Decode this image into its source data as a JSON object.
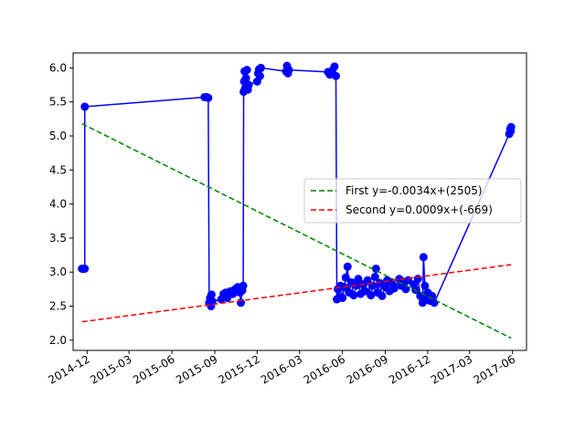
{
  "chart_data": {
    "type": "line",
    "title": "",
    "xlabel": "",
    "ylabel": "",
    "x_axis": {
      "type": "date",
      "range": [
        "2014-11-01",
        "2017-07-01"
      ],
      "ticks": [
        "2014-12",
        "2015-03",
        "2015-06",
        "2015-09",
        "2015-12",
        "2016-03",
        "2016-06",
        "2016-09",
        "2016-12",
        "2017-03",
        "2017-06"
      ]
    },
    "y_axis": {
      "range": [
        1.85,
        6.22
      ],
      "ticks": [
        2.0,
        2.5,
        3.0,
        3.5,
        4.0,
        4.5,
        5.0,
        5.5,
        6.0
      ],
      "tick_labels": [
        "2.0",
        "2.5",
        "3.0",
        "3.5",
        "4.0",
        "4.5",
        "5.0",
        "5.5",
        "6.0"
      ]
    },
    "grid": false,
    "legend_placement": "center-right",
    "series": [
      {
        "kind": "data",
        "color": "#0000ff",
        "marker": "circle",
        "points": [
          [
            "2014-11-20",
            3.05
          ],
          [
            "2014-11-22",
            3.05
          ],
          [
            "2014-11-24",
            3.05
          ],
          [
            "2014-11-26",
            3.05
          ],
          [
            "2014-11-26",
            5.43
          ],
          [
            "2015-08-10",
            5.57
          ],
          [
            "2015-08-15",
            5.57
          ],
          [
            "2015-08-18",
            5.56
          ],
          [
            "2015-08-20",
            2.55
          ],
          [
            "2015-08-22",
            2.62
          ],
          [
            "2015-08-24",
            2.5
          ],
          [
            "2015-08-25",
            2.67
          ],
          [
            "2015-08-27",
            2.57
          ],
          [
            "2015-09-15",
            2.6
          ],
          [
            "2015-09-20",
            2.68
          ],
          [
            "2015-09-25",
            2.7
          ],
          [
            "2015-09-28",
            2.62
          ],
          [
            "2015-10-05",
            2.72
          ],
          [
            "2015-10-10",
            2.68
          ],
          [
            "2015-10-15",
            2.75
          ],
          [
            "2015-10-20",
            2.78
          ],
          [
            "2015-10-25",
            2.7
          ],
          [
            "2015-10-27",
            2.55
          ],
          [
            "2015-10-30",
            2.73
          ],
          [
            "2015-11-01",
            2.8
          ],
          [
            "2015-11-02",
            5.65
          ],
          [
            "2015-11-03",
            5.8
          ],
          [
            "2015-11-04",
            5.95
          ],
          [
            "2015-11-05",
            5.7
          ],
          [
            "2015-11-07",
            5.85
          ],
          [
            "2015-11-09",
            5.97
          ],
          [
            "2015-11-11",
            5.68
          ],
          [
            "2015-11-13",
            5.75
          ],
          [
            "2015-12-01",
            5.8
          ],
          [
            "2015-12-03",
            5.92
          ],
          [
            "2015-12-05",
            5.98
          ],
          [
            "2015-12-07",
            5.88
          ],
          [
            "2015-12-09",
            6.0
          ],
          [
            "2016-02-01",
            5.95
          ],
          [
            "2016-02-03",
            6.03
          ],
          [
            "2016-02-05",
            5.92
          ],
          [
            "2016-02-07",
            5.97
          ],
          [
            "2016-05-01",
            5.94
          ],
          [
            "2016-05-05",
            5.9
          ],
          [
            "2016-05-10",
            5.96
          ],
          [
            "2016-05-15",
            6.02
          ],
          [
            "2016-05-18",
            5.88
          ],
          [
            "2016-05-20",
            2.6
          ],
          [
            "2016-05-22",
            2.75
          ],
          [
            "2016-05-25",
            2.63
          ],
          [
            "2016-05-28",
            2.8
          ],
          [
            "2016-06-01",
            2.62
          ],
          [
            "2016-06-05",
            2.78
          ],
          [
            "2016-06-08",
            2.92
          ],
          [
            "2016-06-12",
            3.08
          ],
          [
            "2016-06-15",
            2.7
          ],
          [
            "2016-06-20",
            2.85
          ],
          [
            "2016-06-25",
            2.66
          ],
          [
            "2016-07-01",
            2.8
          ],
          [
            "2016-07-05",
            2.9
          ],
          [
            "2016-07-10",
            2.68
          ],
          [
            "2016-07-15",
            2.82
          ],
          [
            "2016-07-20",
            2.72
          ],
          [
            "2016-07-25",
            2.88
          ],
          [
            "2016-08-01",
            2.66
          ],
          [
            "2016-08-05",
            2.8
          ],
          [
            "2016-08-10",
            2.93
          ],
          [
            "2016-08-12",
            3.05
          ],
          [
            "2016-08-15",
            2.7
          ],
          [
            "2016-08-20",
            2.84
          ],
          [
            "2016-08-25",
            2.65
          ],
          [
            "2016-09-01",
            2.78
          ],
          [
            "2016-09-05",
            2.88
          ],
          [
            "2016-09-10",
            2.72
          ],
          [
            "2016-09-15",
            2.84
          ],
          [
            "2016-09-20",
            2.76
          ],
          [
            "2016-10-01",
            2.9
          ],
          [
            "2016-10-05",
            2.8
          ],
          [
            "2016-10-10",
            2.86
          ],
          [
            "2016-10-15",
            2.75
          ],
          [
            "2016-10-20",
            2.88
          ],
          [
            "2016-11-01",
            2.82
          ],
          [
            "2016-11-05",
            2.74
          ],
          [
            "2016-11-10",
            2.9
          ],
          [
            "2016-11-15",
            2.65
          ],
          [
            "2016-11-20",
            2.55
          ],
          [
            "2016-11-22",
            3.22
          ],
          [
            "2016-11-25",
            2.8
          ],
          [
            "2016-11-28",
            2.62
          ],
          [
            "2016-12-01",
            2.7
          ],
          [
            "2016-12-05",
            2.58
          ],
          [
            "2016-12-10",
            2.65
          ],
          [
            "2016-12-15",
            2.55
          ],
          [
            "2017-05-25",
            5.03
          ],
          [
            "2017-05-27",
            5.1
          ],
          [
            "2017-05-28",
            5.07
          ],
          [
            "2017-05-29",
            5.13
          ]
        ]
      },
      {
        "kind": "fit",
        "name": "First y=-0.0034x+(2505)",
        "color": "#008000",
        "dash": "dashed",
        "points": [
          [
            "2014-11-20",
            5.18
          ],
          [
            "2017-05-29",
            2.03
          ]
        ]
      },
      {
        "kind": "fit",
        "name": "Second y=0.0009x+(-669)",
        "color": "#ff0000",
        "dash": "dashed",
        "points": [
          [
            "2014-11-20",
            2.27
          ],
          [
            "2017-05-29",
            3.11
          ]
        ]
      }
    ]
  }
}
